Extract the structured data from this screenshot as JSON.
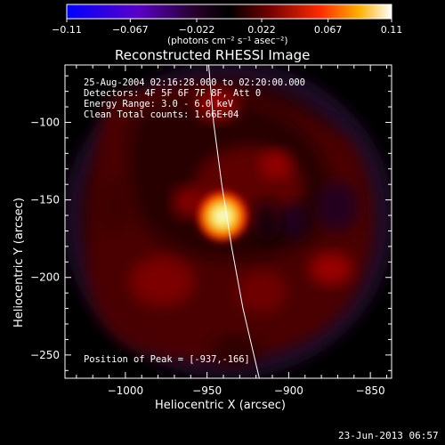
{
  "chart_data": {
    "type": "heatmap",
    "title": "Reconstructed RHESSI Image",
    "xlabel": "Heliocentric X (arcsec)",
    "ylabel": "Heliocentric Y (arcsec)",
    "xlim": [
      -1037,
      -837
    ],
    "ylim": [
      -265,
      -63
    ],
    "x_ticks": [
      -1000,
      -950,
      -900,
      -850
    ],
    "y_ticks": [
      -100,
      -150,
      -200,
      -250
    ],
    "x_tick_labels": [
      "−1000",
      "−950",
      "−900",
      "−850"
    ],
    "y_tick_labels": [
      "−100",
      "−150",
      "−200",
      "−250"
    ],
    "colorbar": {
      "range": [
        -0.11,
        0.11
      ],
      "tick_values": [
        -0.11,
        -0.067,
        -0.022,
        0.022,
        0.067,
        0.11
      ],
      "tick_labels": [
        "−0.11",
        "−0.067",
        "−0.022",
        "0.022",
        "0.067",
        "0.11"
      ],
      "unit_label": "(photons cm⁻² s⁻¹ asec⁻²)"
    },
    "annotations": [
      "25-Aug-2004 02:16:28.000 to 02:20:00.000",
      "Detectors: 4F 5F 6F 7F 8F, Att 0",
      "Energy Range: 3.0 - 6.0 keV",
      "Clean     Total counts: 1.66E+04"
    ],
    "peak_label": "Position of Peak = [-937,-166]",
    "peak": {
      "x": -937,
      "y": -166
    },
    "grid": false,
    "colormap": "blue-purple-black-red-yellow-white",
    "limb_curve": [
      [
        -949,
        -63
      ],
      [
        -946,
        -100
      ],
      [
        -941,
        -140
      ],
      [
        -935,
        -180
      ],
      [
        -928,
        -220
      ],
      [
        -918,
        -265
      ]
    ]
  },
  "footer": {
    "date": "23-Jun-2013 06:57"
  }
}
